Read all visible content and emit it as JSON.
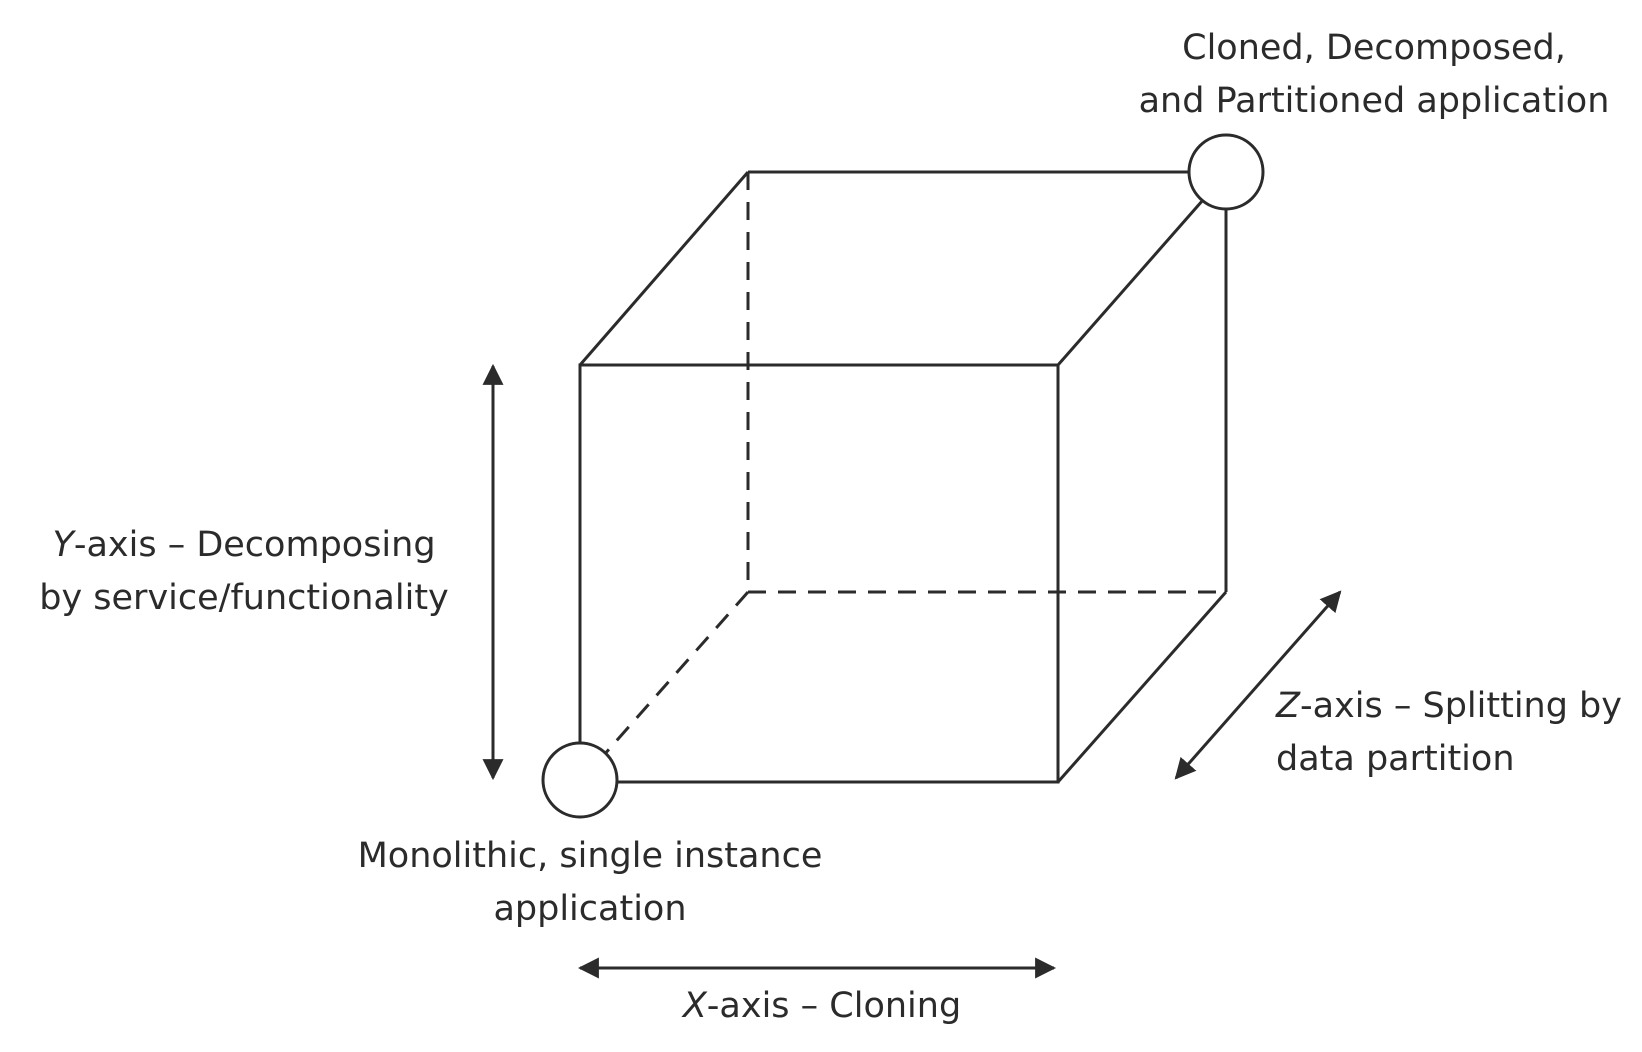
{
  "labels": {
    "top_right": {
      "line1": "Cloned, Decomposed,",
      "line2": "and Partitioned application"
    },
    "bottom_left": {
      "line1": "Monolithic, single instance",
      "line2": "application"
    },
    "y_axis": {
      "letter": "Y",
      "line1_rest": "-axis – Decomposing",
      "line2": "by service/functionality"
    },
    "z_axis": {
      "letter": "Z",
      "line1_rest": "-axis – Splitting by",
      "line2": "data partition"
    },
    "x_axis": {
      "letter": "X",
      "rest": "-axis – Cloning"
    }
  },
  "colors": {
    "stroke": "#2b2b2b",
    "text": "#2b2b2b",
    "background": "#ffffff"
  }
}
